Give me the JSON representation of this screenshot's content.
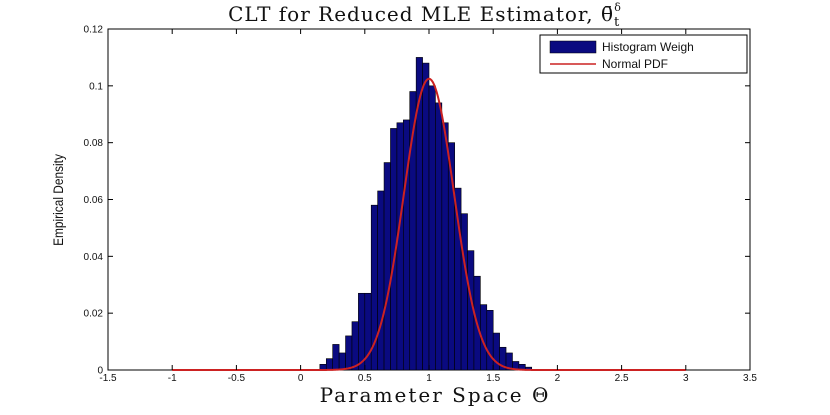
{
  "chart_data": {
    "type": "bar",
    "title": "CLT for Reduced MLE Estimator, θ̄",
    "title_symbol_sub": "t",
    "title_symbol_sup": "δ",
    "xlabel": "Parameter Space Θ",
    "ylabel": "Empirical Density",
    "xlim": [
      -1.5,
      3.5
    ],
    "ylim": [
      0,
      0.12
    ],
    "xticks": [
      -1.5,
      -1,
      -0.5,
      0,
      0.5,
      1,
      1.5,
      2,
      2.5,
      3,
      3.5
    ],
    "xtick_labels": [
      "-1.5",
      "-1",
      "-0.5",
      "0",
      "0.5",
      "1",
      "1.5",
      "2",
      "2.5",
      "3",
      "3.5"
    ],
    "yticks": [
      0,
      0.02,
      0.04,
      0.06,
      0.08,
      0.1,
      0.12
    ],
    "ytick_labels": [
      "0",
      "0.02",
      "0.04",
      "0.06",
      "0.08",
      "0.1",
      "0.12"
    ],
    "grid": false,
    "legend_position": "top-right",
    "series": [
      {
        "name": "Histogram Weigh",
        "kind": "histogram",
        "color": "#0a0a80",
        "edgecolor": "#000000",
        "bins": [
          {
            "x0": 0.15,
            "x1": 0.2,
            "value": 0.002
          },
          {
            "x0": 0.2,
            "x1": 0.25,
            "value": 0.004
          },
          {
            "x0": 0.25,
            "x1": 0.3,
            "value": 0.009
          },
          {
            "x0": 0.3,
            "x1": 0.35,
            "value": 0.006
          },
          {
            "x0": 0.35,
            "x1": 0.4,
            "value": 0.012
          },
          {
            "x0": 0.4,
            "x1": 0.45,
            "value": 0.017
          },
          {
            "x0": 0.45,
            "x1": 0.5,
            "value": 0.027
          },
          {
            "x0": 0.5,
            "x1": 0.55,
            "value": 0.027
          },
          {
            "x0": 0.55,
            "x1": 0.6,
            "value": 0.058
          },
          {
            "x0": 0.6,
            "x1": 0.65,
            "value": 0.063
          },
          {
            "x0": 0.65,
            "x1": 0.7,
            "value": 0.073
          },
          {
            "x0": 0.7,
            "x1": 0.75,
            "value": 0.085
          },
          {
            "x0": 0.75,
            "x1": 0.8,
            "value": 0.087
          },
          {
            "x0": 0.8,
            "x1": 0.85,
            "value": 0.088
          },
          {
            "x0": 0.85,
            "x1": 0.9,
            "value": 0.098
          },
          {
            "x0": 0.9,
            "x1": 0.95,
            "value": 0.11
          },
          {
            "x0": 0.95,
            "x1": 1.0,
            "value": 0.108
          },
          {
            "x0": 1.0,
            "x1": 1.05,
            "value": 0.1
          },
          {
            "x0": 1.05,
            "x1": 1.1,
            "value": 0.094
          },
          {
            "x0": 1.1,
            "x1": 1.15,
            "value": 0.087
          },
          {
            "x0": 1.15,
            "x1": 1.2,
            "value": 0.08
          },
          {
            "x0": 1.2,
            "x1": 1.25,
            "value": 0.064
          },
          {
            "x0": 1.25,
            "x1": 1.3,
            "value": 0.055
          },
          {
            "x0": 1.3,
            "x1": 1.35,
            "value": 0.042
          },
          {
            "x0": 1.35,
            "x1": 1.4,
            "value": 0.033
          },
          {
            "x0": 1.4,
            "x1": 1.45,
            "value": 0.023
          },
          {
            "x0": 1.45,
            "x1": 1.5,
            "value": 0.021
          },
          {
            "x0": 1.5,
            "x1": 1.55,
            "value": 0.013
          },
          {
            "x0": 1.55,
            "x1": 1.6,
            "value": 0.008
          },
          {
            "x0": 1.6,
            "x1": 1.65,
            "value": 0.006
          },
          {
            "x0": 1.65,
            "x1": 1.7,
            "value": 0.003
          },
          {
            "x0": 1.7,
            "x1": 1.75,
            "value": 0.002
          },
          {
            "x0": 1.75,
            "x1": 1.8,
            "value": 0.001
          }
        ]
      },
      {
        "name": "Normal PDF",
        "kind": "line",
        "color": "#cc2222",
        "mean": 1.0,
        "peak": 0.1025,
        "sigma": 0.195,
        "x_range": [
          -1,
          3
        ]
      }
    ]
  }
}
